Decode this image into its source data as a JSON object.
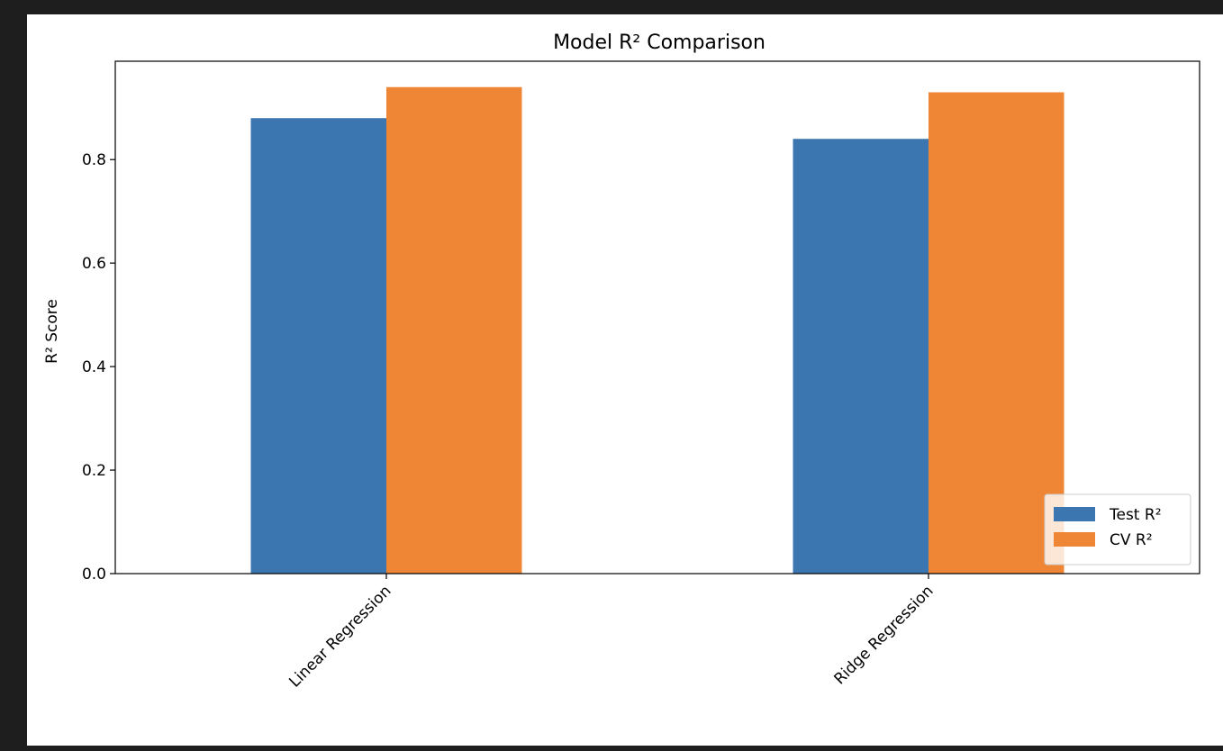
{
  "chart_data": {
    "type": "bar",
    "title": "Model R² Comparison",
    "xlabel": "",
    "ylabel": "R² Score",
    "categories": [
      "Linear Regression",
      "Ridge Regression"
    ],
    "series": [
      {
        "name": "Test R²",
        "values": [
          0.88,
          0.84
        ],
        "color": "#3b76b1"
      },
      {
        "name": "CV R²",
        "values": [
          0.94,
          0.93
        ],
        "color": "#ef8636"
      }
    ],
    "ylim": [
      0,
      0.99
    ],
    "yticks": [
      0.0,
      0.2,
      0.4,
      0.6,
      0.8
    ],
    "ytick_labels": [
      "0.0",
      "0.2",
      "0.4",
      "0.6",
      "0.8"
    ],
    "xtick_rotation": -45,
    "legend_position": "lower-right",
    "grid": false
  }
}
